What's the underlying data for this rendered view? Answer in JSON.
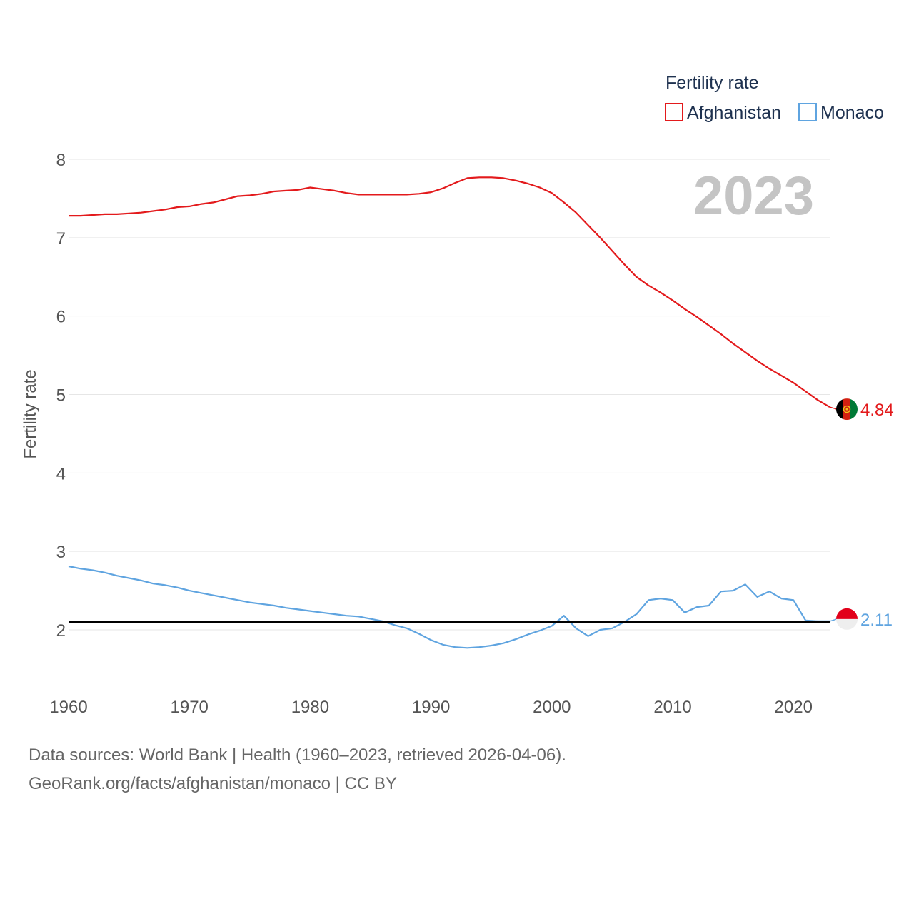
{
  "chart_data": {
    "type": "line",
    "title": "Fertility rate",
    "year": "2023",
    "ylabel": "Fertility rate",
    "xlabel": "",
    "xlim": [
      1960,
      2023
    ],
    "ylim": [
      1.2,
      8.2
    ],
    "x_ticks": [
      1960,
      1970,
      1980,
      1990,
      2000,
      2010,
      2020
    ],
    "y_ticks": [
      2,
      3,
      4,
      5,
      6,
      7,
      8
    ],
    "grid": true,
    "legend_position": "top-right",
    "reference_line": 2.1,
    "x": [
      1960,
      1961,
      1962,
      1963,
      1964,
      1965,
      1966,
      1967,
      1968,
      1969,
      1970,
      1971,
      1972,
      1973,
      1974,
      1975,
      1976,
      1977,
      1978,
      1979,
      1980,
      1981,
      1982,
      1983,
      1984,
      1985,
      1986,
      1987,
      1988,
      1989,
      1990,
      1991,
      1992,
      1993,
      1994,
      1995,
      1996,
      1997,
      1998,
      1999,
      2000,
      2001,
      2002,
      2003,
      2004,
      2005,
      2006,
      2007,
      2008,
      2009,
      2010,
      2011,
      2012,
      2013,
      2014,
      2015,
      2016,
      2017,
      2018,
      2019,
      2020,
      2021,
      2022,
      2023
    ],
    "series": [
      {
        "name": "Afghanistan",
        "color": "#e31a1c",
        "end_label": "4.84",
        "flag": "afghanistan-flag-icon",
        "values": [
          7.28,
          7.28,
          7.29,
          7.3,
          7.3,
          7.31,
          7.32,
          7.34,
          7.36,
          7.39,
          7.4,
          7.43,
          7.45,
          7.49,
          7.53,
          7.54,
          7.56,
          7.59,
          7.6,
          7.61,
          7.64,
          7.62,
          7.6,
          7.57,
          7.55,
          7.55,
          7.55,
          7.55,
          7.55,
          7.56,
          7.58,
          7.63,
          7.7,
          7.76,
          7.77,
          7.77,
          7.76,
          7.73,
          7.69,
          7.64,
          7.57,
          7.45,
          7.32,
          7.16,
          7.0,
          6.83,
          6.66,
          6.5,
          6.39,
          6.3,
          6.2,
          6.09,
          5.99,
          5.88,
          5.77,
          5.65,
          5.54,
          5.43,
          5.33,
          5.24,
          5.15,
          5.04,
          4.93,
          4.84
        ]
      },
      {
        "name": "Monaco",
        "color": "#5fa4e0",
        "end_label": "2.11",
        "flag": "monaco-flag-icon",
        "values": [
          2.81,
          2.78,
          2.76,
          2.73,
          2.69,
          2.66,
          2.63,
          2.59,
          2.57,
          2.54,
          2.5,
          2.47,
          2.44,
          2.41,
          2.38,
          2.35,
          2.33,
          2.31,
          2.28,
          2.26,
          2.24,
          2.22,
          2.2,
          2.18,
          2.17,
          2.14,
          2.11,
          2.06,
          2.02,
          1.95,
          1.87,
          1.81,
          1.78,
          1.77,
          1.78,
          1.8,
          1.83,
          1.88,
          1.94,
          1.99,
          2.05,
          2.18,
          2.02,
          1.92,
          2.0,
          2.02,
          2.1,
          2.2,
          2.38,
          2.4,
          2.38,
          2.22,
          2.29,
          2.31,
          2.49,
          2.5,
          2.58,
          2.42,
          2.49,
          2.4,
          2.38,
          2.12,
          2.11,
          2.11
        ]
      }
    ],
    "sources": [
      "Data sources: World Bank | Health (1960–2023, retrieved 2026-04-06).",
      "GeoRank.org/facts/afghanistan/monaco | CC BY"
    ]
  }
}
